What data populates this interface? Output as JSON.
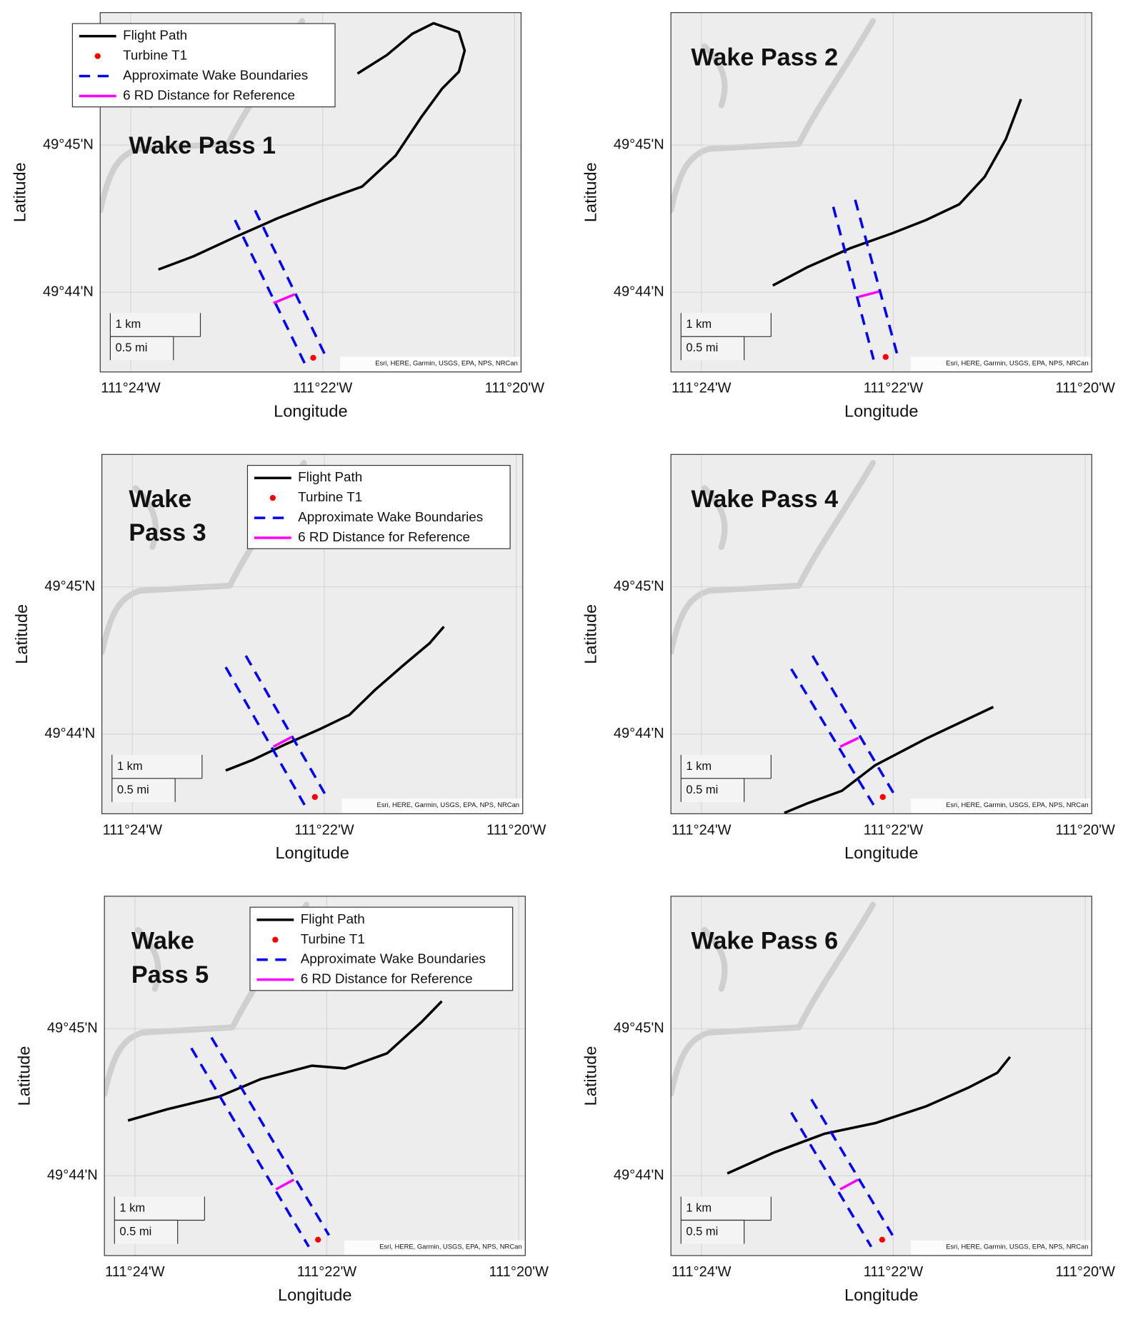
{
  "chart_data": [
    {
      "type": "line",
      "title": "Wake Pass 1",
      "xlabel": "Longitude",
      "ylabel": "Latitude",
      "xlim": [
        -111.4053,
        -111.3322
      ],
      "ylim": [
        49.7243,
        49.765
      ],
      "xticks": [
        {
          "value": -111.4,
          "label": "111°24'W"
        },
        {
          "value": -111.36667,
          "label": "111°22'W"
        },
        {
          "value": -111.33333,
          "label": "111°20'W"
        }
      ],
      "yticks": [
        {
          "value": 49.73333,
          "label": "49°44'N"
        },
        {
          "value": 49.75,
          "label": "49°45'N"
        }
      ],
      "grid": true,
      "legend": "upper left",
      "scale_bar": [
        "1 km",
        "0.5 mi"
      ],
      "attribution": "Esri, HERE, Garmin, USGS, EPA, NPS, NRCan",
      "series": [
        {
          "name": "Flight Path",
          "color": "#000000",
          "style": "solid",
          "x": [
            -111.3952,
            -111.3891,
            -111.3818,
            -111.3745,
            -111.3671,
            -111.3598,
            -111.354,
            -111.3496,
            -111.3459,
            -111.343,
            -111.342,
            -111.343,
            -111.3474,
            -111.3511,
            -111.3555,
            -111.3606
          ],
          "y": [
            49.7359,
            49.7374,
            49.7396,
            49.7417,
            49.7436,
            49.7453,
            49.7488,
            49.7531,
            49.7564,
            49.7583,
            49.7607,
            49.7628,
            49.7638,
            49.7626,
            49.7602,
            49.7581
          ]
        },
        {
          "name": "Turbine T1",
          "color": "#ff0000",
          "style": "marker",
          "x": [
            -111.3683
          ],
          "y": [
            49.7259
          ]
        },
        {
          "name": "Approximate Wake Boundaries",
          "color": "#0000ff",
          "style": "dashed",
          "x": [
            -111.3819,
            -111.3698,
            null,
            -111.3784,
            -111.3663
          ],
          "y": [
            49.7415,
            49.7253,
            null,
            49.7426,
            49.7263
          ]
        },
        {
          "name": "6 RD Distance for Reference",
          "color": "#ff00ff",
          "style": "solid",
          "x": [
            -111.3752,
            -111.3715
          ],
          "y": [
            49.7321,
            49.7331
          ]
        }
      ]
    },
    {
      "type": "line",
      "title": "Wake Pass 2",
      "xlabel": "Longitude",
      "ylabel": "Latitude",
      "xlim": [
        -111.4053,
        -111.3322
      ],
      "ylim": [
        49.7243,
        49.765
      ],
      "xticks": [
        {
          "value": -111.4,
          "label": "111°24'W"
        },
        {
          "value": -111.36667,
          "label": "111°22'W"
        },
        {
          "value": -111.33333,
          "label": "111°20'W"
        }
      ],
      "yticks": [
        {
          "value": 49.73333,
          "label": "49°44'N"
        },
        {
          "value": 49.75,
          "label": "49°45'N"
        }
      ],
      "grid": true,
      "scale_bar": [
        "1 km",
        "0.5 mi"
      ],
      "attribution": "Esri, HERE, Garmin, USGS, EPA, NPS, NRCan",
      "series": [
        {
          "color": "#000000",
          "style": "solid",
          "x": [
            -111.3876,
            -111.3815,
            -111.3742,
            -111.3669,
            -111.361,
            -111.3552,
            -111.3508,
            -111.3471,
            -111.3445
          ],
          "y": [
            49.7341,
            49.7362,
            49.7383,
            49.74,
            49.7415,
            49.7433,
            49.7464,
            49.7507,
            49.7552
          ]
        },
        {
          "color": "#ff0000",
          "style": "marker",
          "x": [
            -111.368
          ],
          "y": [
            49.726
          ]
        },
        {
          "color": "#0000ff",
          "style": "dashed",
          "x": [
            -111.3771,
            -111.3701,
            null,
            -111.3733,
            -111.366
          ],
          "y": [
            49.743,
            49.7257,
            null,
            49.7438,
            49.7263
          ]
        },
        {
          "color": "#ff00ff",
          "style": "solid",
          "x": [
            -111.3727,
            -111.3692
          ],
          "y": [
            49.7328,
            49.7334
          ]
        }
      ]
    },
    {
      "type": "line",
      "title": "Wake Pass 3",
      "xlabel": "Longitude",
      "ylabel": "Latitude",
      "xlim": [
        -111.4053,
        -111.3322
      ],
      "ylim": [
        49.7243,
        49.765
      ],
      "xticks": [
        {
          "value": -111.4,
          "label": "111°24'W"
        },
        {
          "value": -111.36667,
          "label": "111°22'W"
        },
        {
          "value": -111.33333,
          "label": "111°20'W"
        }
      ],
      "yticks": [
        {
          "value": 49.73333,
          "label": "49°44'N"
        },
        {
          "value": 49.75,
          "label": "49°45'N"
        }
      ],
      "grid": true,
      "legend": "upper right",
      "scale_bar": [
        "1 km",
        "0.5 mi"
      ],
      "attribution": "Esri, HERE, Garmin, USGS, EPA, NPS, NRCan",
      "series": [
        {
          "name": "Flight Path",
          "color": "#000000",
          "style": "solid",
          "x": [
            -111.3838,
            -111.3791,
            -111.3733,
            -111.3674,
            -111.3623,
            -111.3579,
            -111.3528,
            -111.3484,
            -111.3459
          ],
          "y": [
            49.7292,
            49.7304,
            49.7322,
            49.7339,
            49.7355,
            49.7383,
            49.7412,
            49.7436,
            49.7455
          ]
        },
        {
          "name": "Turbine T1",
          "color": "#ff0000",
          "style": "marker",
          "x": [
            -111.3683
          ],
          "y": [
            49.7262
          ]
        },
        {
          "name": "Approximate Wake Boundaries",
          "color": "#0000ff",
          "style": "dashed",
          "x": [
            -111.3838,
            -111.3701,
            null,
            -111.3803,
            -111.3666
          ],
          "y": [
            49.7409,
            49.7253,
            null,
            49.7422,
            49.7266
          ]
        },
        {
          "name": "6 RD Distance for Reference",
          "color": "#ff00ff",
          "style": "solid",
          "x": [
            -111.3755,
            -111.3723
          ],
          "y": [
            49.7319,
            49.733
          ]
        }
      ]
    },
    {
      "type": "line",
      "title": "Wake Pass 4",
      "xlabel": "Longitude",
      "ylabel": "Latitude",
      "xlim": [
        -111.4053,
        -111.3322
      ],
      "ylim": [
        49.7243,
        49.765
      ],
      "xticks": [
        {
          "value": -111.4,
          "label": "111°24'W"
        },
        {
          "value": -111.36667,
          "label": "111°22'W"
        },
        {
          "value": -111.33333,
          "label": "111°20'W"
        }
      ],
      "yticks": [
        {
          "value": 49.73333,
          "label": "49°44'N"
        },
        {
          "value": 49.75,
          "label": "49°45'N"
        }
      ],
      "grid": true,
      "scale_bar": [
        "1 km",
        "0.5 mi"
      ],
      "attribution": "Esri, HERE, Garmin, USGS, EPA, NPS, NRCan",
      "series": [
        {
          "color": "#000000",
          "style": "solid",
          "x": [
            -111.3856,
            -111.3815,
            -111.3756,
            -111.3698,
            -111.361,
            -111.3493
          ],
          "y": [
            49.7244,
            49.7255,
            49.7269,
            49.7298,
            49.7328,
            49.7364
          ]
        },
        {
          "color": "#ff0000",
          "style": "marker",
          "x": [
            -111.3685
          ],
          "y": [
            49.7262
          ]
        },
        {
          "color": "#0000ff",
          "style": "dashed",
          "x": [
            -111.3844,
            -111.3701,
            null,
            -111.3807,
            -111.3666
          ],
          "y": [
            49.7407,
            49.7253,
            null,
            49.7422,
            49.7266
          ]
        },
        {
          "color": "#ff00ff",
          "style": "solid",
          "x": [
            -111.3759,
            -111.3727
          ],
          "y": [
            49.7319,
            49.7329
          ]
        }
      ]
    },
    {
      "type": "line",
      "title": "Wake Pass 5",
      "xlabel": "Longitude",
      "ylabel": "Latitude",
      "xlim": [
        -111.4053,
        -111.3322
      ],
      "ylim": [
        49.7243,
        49.765
      ],
      "xticks": [
        {
          "value": -111.4,
          "label": "111°24'W"
        },
        {
          "value": -111.36667,
          "label": "111°22'W"
        },
        {
          "value": -111.33333,
          "label": "111°20'W"
        }
      ],
      "yticks": [
        {
          "value": 49.73333,
          "label": "49°44'N"
        },
        {
          "value": 49.75,
          "label": "49°45'N"
        }
      ],
      "grid": true,
      "legend": "upper right",
      "scale_bar": [
        "1 km",
        "0.5 mi"
      ],
      "attribution": "Esri, HERE, Garmin, USGS, EPA, NPS, NRCan",
      "series": [
        {
          "name": "Flight Path",
          "color": "#000000",
          "style": "solid",
          "x": [
            -111.4012,
            -111.3942,
            -111.3854,
            -111.3781,
            -111.3693,
            -111.3635,
            -111.3562,
            -111.3503,
            -111.3467
          ],
          "y": [
            49.7396,
            49.7409,
            49.7423,
            49.7443,
            49.7458,
            49.7455,
            49.7472,
            49.7507,
            49.7531
          ]
        },
        {
          "name": "Turbine T1",
          "color": "#ff0000",
          "style": "marker",
          "x": [
            -111.3682
          ],
          "y": [
            49.7261
          ]
        },
        {
          "name": "Approximate Wake Boundaries",
          "color": "#0000ff",
          "style": "dashed",
          "x": [
            -111.3902,
            -111.3698,
            null,
            -111.3867,
            -111.3663
          ],
          "y": [
            49.7478,
            49.7253,
            null,
            49.749,
            49.7266
          ]
        },
        {
          "name": "6 RD Distance for Reference",
          "color": "#ff00ff",
          "style": "solid",
          "x": [
            -111.3755,
            -111.3724
          ],
          "y": [
            49.7318,
            49.7329
          ]
        }
      ]
    },
    {
      "type": "line",
      "title": "Wake Pass 6",
      "xlabel": "Longitude",
      "ylabel": "Latitude",
      "xlim": [
        -111.4053,
        -111.3322
      ],
      "ylim": [
        49.7243,
        49.765
      ],
      "xticks": [
        {
          "value": -111.4,
          "label": "111°24'W"
        },
        {
          "value": -111.36667,
          "label": "111°22'W"
        },
        {
          "value": -111.33333,
          "label": "111°20'W"
        }
      ],
      "yticks": [
        {
          "value": 49.73333,
          "label": "49°44'N"
        },
        {
          "value": 49.75,
          "label": "49°45'N"
        }
      ],
      "grid": true,
      "scale_bar": [
        "1 km",
        "0.5 mi"
      ],
      "attribution": "Esri, HERE, Garmin, USGS, EPA, NPS, NRCan",
      "series": [
        {
          "color": "#000000",
          "style": "solid",
          "x": [
            -111.3955,
            -111.3873,
            -111.3786,
            -111.3698,
            -111.361,
            -111.3537,
            -111.3486,
            -111.3464
          ],
          "y": [
            49.7336,
            49.736,
            49.7381,
            49.7393,
            49.7412,
            49.7433,
            49.745,
            49.7468
          ]
        },
        {
          "color": "#ff0000",
          "style": "marker",
          "x": [
            -111.3686
          ],
          "y": [
            49.7261
          ]
        },
        {
          "color": "#0000ff",
          "style": "dashed",
          "x": [
            -111.3844,
            -111.3705,
            null,
            -111.3809,
            -111.3668
          ],
          "y": [
            49.7405,
            49.7253,
            null,
            49.742,
            49.7266
          ]
        },
        {
          "color": "#ff00ff",
          "style": "solid",
          "x": [
            -111.3759,
            -111.3728
          ],
          "y": [
            49.7318,
            49.7329
          ]
        }
      ]
    }
  ]
}
